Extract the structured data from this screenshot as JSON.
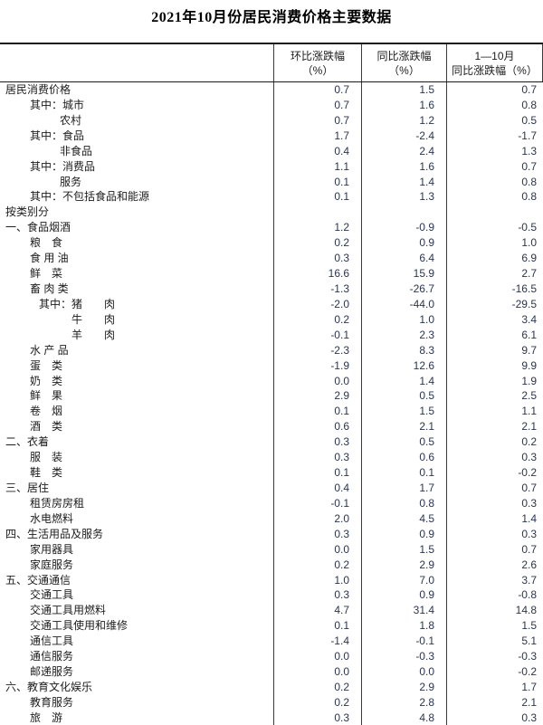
{
  "title": "2021年10月份居民消费价格主要数据",
  "colors": {
    "title_text": "#000000",
    "label_text": "#1c1c1c",
    "number_text": "#2a3550",
    "border": "#3c3c3c",
    "rule": "#1a1a1a"
  },
  "table": {
    "columns": [
      {
        "line1": "环比涨跌幅",
        "line2": "（%）"
      },
      {
        "line1": "同比涨跌幅",
        "line2": "（%）"
      },
      {
        "line1": "1—10月",
        "line2": "同比涨跌幅（%）"
      }
    ],
    "rows": [
      {
        "label": "居民消费价格",
        "indent": 0,
        "values": [
          "0.7",
          "1.5",
          "0.7"
        ]
      },
      {
        "label": "其中：城市",
        "indent": 1,
        "values": [
          "0.7",
          "1.6",
          "0.8"
        ]
      },
      {
        "label": "农村",
        "indent": 2,
        "values": [
          "0.7",
          "1.2",
          "0.5"
        ]
      },
      {
        "label": "其中：食品",
        "indent": 1,
        "values": [
          "1.7",
          "-2.4",
          "-1.7"
        ]
      },
      {
        "label": "非食品",
        "indent": 2,
        "values": [
          "0.4",
          "2.4",
          "1.3"
        ]
      },
      {
        "label": "其中：消费品",
        "indent": 1,
        "values": [
          "1.1",
          "1.6",
          "0.7"
        ]
      },
      {
        "label": "服务",
        "indent": 2,
        "values": [
          "0.1",
          "1.4",
          "0.8"
        ]
      },
      {
        "label": "其中：不包括食品和能源",
        "indent": 1,
        "values": [
          "0.1",
          "1.3",
          "0.8"
        ]
      },
      {
        "label": "按类别分",
        "indent": 0,
        "values": [
          "",
          "",
          ""
        ]
      },
      {
        "label": "一、食品烟酒",
        "indent": 0,
        "values": [
          "1.2",
          "-0.9",
          "-0.5"
        ]
      },
      {
        "label": "粮　食",
        "indent": 1,
        "values": [
          "0.2",
          "0.9",
          "1.0"
        ]
      },
      {
        "label": "食 用 油",
        "indent": 1,
        "values": [
          "0.3",
          "6.4",
          "6.9"
        ]
      },
      {
        "label": "鲜　菜",
        "indent": 1,
        "values": [
          "16.6",
          "15.9",
          "2.7"
        ]
      },
      {
        "label": "畜 肉 类",
        "indent": 1,
        "values": [
          "-1.3",
          "-26.7",
          "-16.5"
        ]
      },
      {
        "label": "其中：猪　　肉",
        "indent": 3,
        "values": [
          "-2.0",
          "-44.0",
          "-29.5"
        ]
      },
      {
        "label": "牛　　肉",
        "indent": 4,
        "values": [
          "0.2",
          "1.0",
          "3.4"
        ]
      },
      {
        "label": "羊　　肉",
        "indent": 4,
        "values": [
          "-0.1",
          "2.3",
          "6.1"
        ]
      },
      {
        "label": "水 产 品",
        "indent": 1,
        "values": [
          "-2.3",
          "8.3",
          "9.7"
        ]
      },
      {
        "label": "蛋　类",
        "indent": 1,
        "values": [
          "-1.9",
          "12.6",
          "9.9"
        ]
      },
      {
        "label": "奶　类",
        "indent": 1,
        "values": [
          "0.0",
          "1.4",
          "1.9"
        ]
      },
      {
        "label": "鲜　果",
        "indent": 1,
        "values": [
          "2.9",
          "0.5",
          "2.5"
        ]
      },
      {
        "label": "卷　烟",
        "indent": 1,
        "values": [
          "0.1",
          "1.5",
          "1.1"
        ]
      },
      {
        "label": "酒　类",
        "indent": 1,
        "values": [
          "0.6",
          "2.1",
          "2.1"
        ]
      },
      {
        "label": "二、衣着",
        "indent": 0,
        "values": [
          "0.3",
          "0.5",
          "0.2"
        ]
      },
      {
        "label": "服　装",
        "indent": 1,
        "values": [
          "0.3",
          "0.6",
          "0.3"
        ]
      },
      {
        "label": "鞋　类",
        "indent": 1,
        "values": [
          "0.1",
          "0.1",
          "-0.2"
        ]
      },
      {
        "label": "三、居住",
        "indent": 0,
        "values": [
          "0.4",
          "1.7",
          "0.7"
        ]
      },
      {
        "label": "租赁房房租",
        "indent": 1,
        "values": [
          "-0.1",
          "0.8",
          "0.3"
        ]
      },
      {
        "label": "水电燃料",
        "indent": 1,
        "values": [
          "2.0",
          "4.5",
          "1.4"
        ]
      },
      {
        "label": "四、生活用品及服务",
        "indent": 0,
        "values": [
          "0.3",
          "0.9",
          "0.3"
        ]
      },
      {
        "label": "家用器具",
        "indent": 1,
        "values": [
          "0.0",
          "1.5",
          "0.7"
        ]
      },
      {
        "label": "家庭服务",
        "indent": 1,
        "values": [
          "0.2",
          "2.9",
          "2.6"
        ]
      },
      {
        "label": "五、交通通信",
        "indent": 0,
        "values": [
          "1.0",
          "7.0",
          "3.7"
        ]
      },
      {
        "label": "交通工具",
        "indent": 1,
        "values": [
          "0.3",
          "0.9",
          "-0.8"
        ]
      },
      {
        "label": "交通工具用燃料",
        "indent": 1,
        "values": [
          "4.7",
          "31.4",
          "14.8"
        ]
      },
      {
        "label": "交通工具使用和维修",
        "indent": 1,
        "values": [
          "0.1",
          "1.8",
          "1.5"
        ]
      },
      {
        "label": "通信工具",
        "indent": 1,
        "values": [
          "-1.4",
          "-0.1",
          "5.1"
        ]
      },
      {
        "label": "通信服务",
        "indent": 1,
        "values": [
          "0.0",
          "-0.3",
          "-0.3"
        ]
      },
      {
        "label": "邮递服务",
        "indent": 1,
        "values": [
          "0.0",
          "0.0",
          "-0.2"
        ]
      },
      {
        "label": "六、教育文化娱乐",
        "indent": 0,
        "values": [
          "0.2",
          "2.9",
          "1.7"
        ]
      },
      {
        "label": "教育服务",
        "indent": 1,
        "values": [
          "0.2",
          "2.8",
          "2.1"
        ]
      },
      {
        "label": "旅　游",
        "indent": 1,
        "values": [
          "0.3",
          "4.8",
          "0.3"
        ]
      }
    ]
  }
}
